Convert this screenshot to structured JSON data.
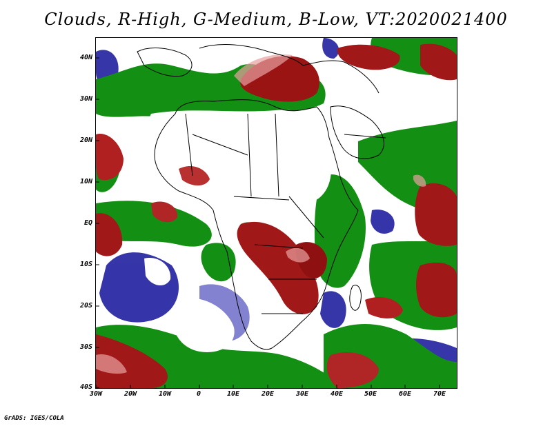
{
  "title": "Clouds, R-High, G-Medium, B-Low, VT:2020021400",
  "footer": "GrADS: IGES/COLA",
  "map": {
    "region_lon_range": [
      -30,
      75
    ],
    "region_lat_range": [
      -40,
      45
    ],
    "lat_labels": [
      "40N",
      "30N",
      "20N",
      "10N",
      "EQ",
      "10S",
      "20S",
      "30S",
      "40S"
    ],
    "lon_labels": [
      "30W",
      "20W",
      "10W",
      "0",
      "10E",
      "20E",
      "30E",
      "40E",
      "50E",
      "60E",
      "70E"
    ],
    "legend_colors": {
      "high_cloud": "#a01818",
      "medium_cloud": "#128c12",
      "low_cloud": "#2020a0"
    }
  }
}
